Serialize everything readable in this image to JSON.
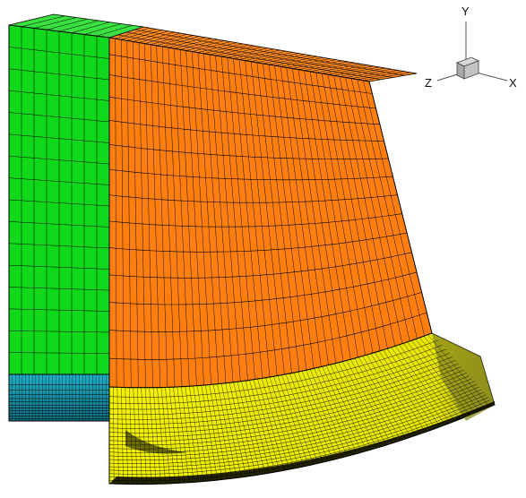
{
  "axes": {
    "y_label": "Y",
    "z_label": "Z",
    "x_label": "X"
  },
  "blocks": [
    {
      "name": "green-block",
      "color": "#11d81b",
      "cols": 8,
      "rows": 16
    },
    {
      "name": "orange-block",
      "color": "#ff7f0e",
      "cols": 44,
      "rows": 14
    },
    {
      "name": "yellow-block",
      "color": "#f2f200",
      "cols": 80,
      "rows": 22
    },
    {
      "name": "teal-block",
      "color": "#17a6bf",
      "cols": 30,
      "rows": 12
    }
  ],
  "colors": {
    "grid_line": "#000000",
    "olive_corner": "#8a8a1e",
    "gizmo_cube": "#bdbdbd"
  }
}
